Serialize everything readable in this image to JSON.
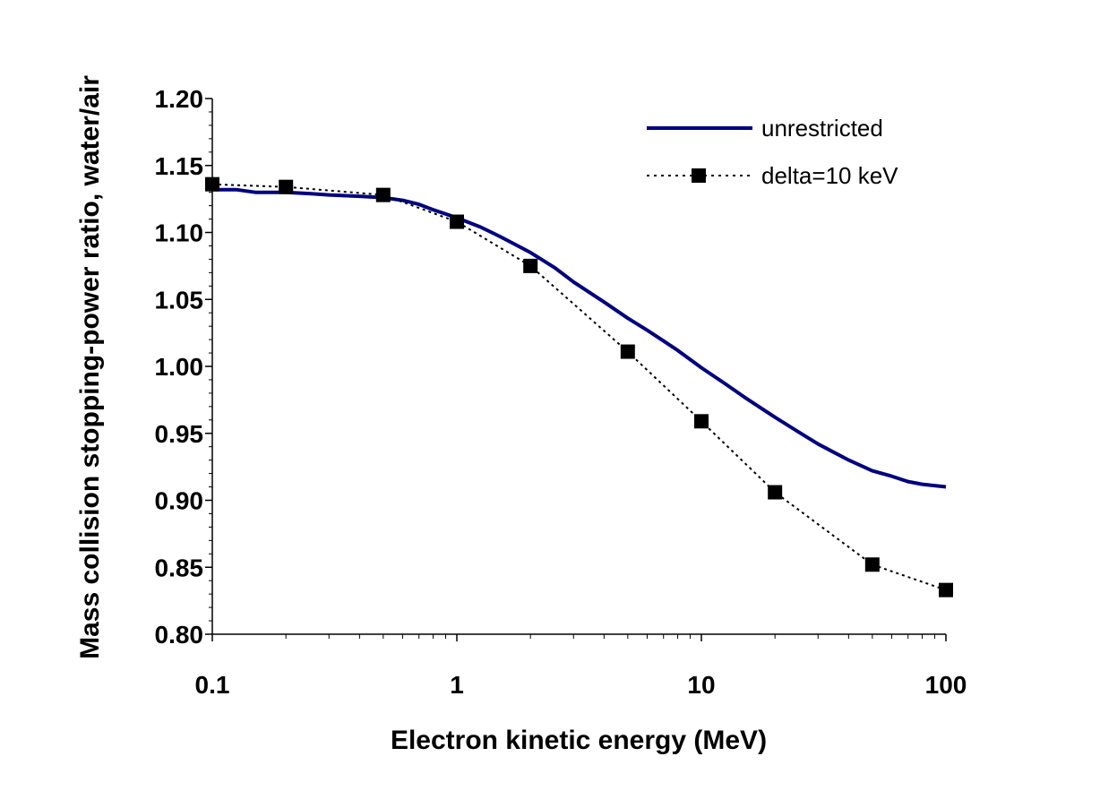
{
  "chart_data": {
    "type": "line",
    "xlabel": "Electron kinetic energy (MeV)",
    "ylabel": "Mass collision stopping-power ratio, water/air",
    "x_scale": "log",
    "xlim": [
      0.1,
      100
    ],
    "ylim": [
      0.8,
      1.2
    ],
    "x_ticks": [
      0.1,
      1,
      10,
      100
    ],
    "x_tick_labels": [
      "0.1",
      "1",
      "10",
      "100"
    ],
    "y_ticks": [
      0.8,
      0.85,
      0.9,
      0.95,
      1.0,
      1.05,
      1.1,
      1.15,
      1.2
    ],
    "y_tick_labels": [
      "0.80",
      "0.85",
      "0.90",
      "0.95",
      "1.00",
      "1.05",
      "1.10",
      "1.15",
      "1.20"
    ],
    "grid": false,
    "legend_position": "top-right",
    "series": [
      {
        "name": "unrestricted",
        "style": "solid",
        "color": "#000080",
        "marker": "none",
        "x": [
          0.1,
          0.125,
          0.15,
          0.2,
          0.25,
          0.3,
          0.4,
          0.5,
          0.6,
          0.7,
          0.8,
          1,
          1.25,
          1.5,
          2,
          2.5,
          3,
          4,
          5,
          6,
          7,
          8,
          10,
          12.5,
          15,
          20,
          25,
          30,
          40,
          50,
          60,
          70,
          80,
          100
        ],
        "y": [
          1.132,
          1.132,
          1.13,
          1.13,
          1.129,
          1.128,
          1.127,
          1.126,
          1.124,
          1.121,
          1.117,
          1.111,
          1.104,
          1.097,
          1.085,
          1.074,
          1.063,
          1.048,
          1.036,
          1.027,
          1.019,
          1.012,
          0.999,
          0.987,
          0.977,
          0.962,
          0.951,
          0.942,
          0.93,
          0.922,
          0.918,
          0.914,
          0.912,
          0.91
        ]
      },
      {
        "name": "delta=10 keV",
        "style": "dotted",
        "color": "#000000",
        "marker": "square",
        "x": [
          0.1,
          0.2,
          0.5,
          1,
          2,
          5,
          10,
          20,
          50,
          100
        ],
        "y": [
          1.136,
          1.134,
          1.128,
          1.108,
          1.075,
          1.011,
          0.959,
          0.906,
          0.852,
          0.833
        ]
      }
    ]
  }
}
